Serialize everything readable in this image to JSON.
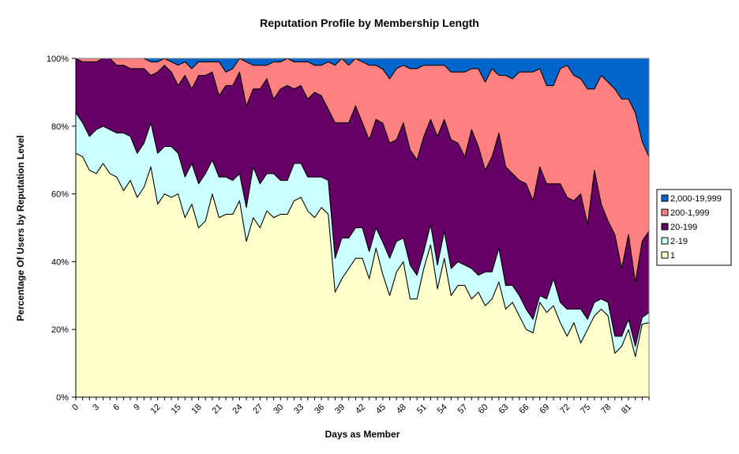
{
  "chart_data": {
    "type": "area",
    "stacked": "percent",
    "title": "Reputation Profile by Membership Length",
    "xlabel": "Days as Member",
    "ylabel": "Percentage Of Users by Reputation Level",
    "ylim": [
      0,
      100
    ],
    "y_ticks": [
      "0%",
      "20%",
      "40%",
      "60%",
      "80%",
      "100%"
    ],
    "x": [
      0,
      1,
      2,
      3,
      4,
      5,
      6,
      7,
      8,
      9,
      10,
      11,
      12,
      13,
      14,
      15,
      16,
      17,
      18,
      19,
      20,
      21,
      22,
      23,
      24,
      25,
      26,
      27,
      28,
      29,
      30,
      31,
      32,
      33,
      34,
      35,
      36,
      37,
      38,
      39,
      40,
      41,
      42,
      43,
      44,
      45,
      46,
      47,
      48,
      49,
      50,
      51,
      52,
      53,
      54,
      55,
      56,
      57,
      58,
      59,
      60,
      61,
      62,
      63,
      64,
      65,
      66,
      67,
      68,
      69,
      70,
      71,
      72,
      73,
      74,
      75,
      76,
      77,
      78,
      79,
      80,
      81,
      82,
      83,
      84
    ],
    "x_tick_labels": [
      "0",
      "3",
      "6",
      "9",
      "12",
      "15",
      "18",
      "21",
      "24",
      "27",
      "30",
      "33",
      "36",
      "39",
      "42",
      "45",
      "48",
      "51",
      "54",
      "57",
      "60",
      "63",
      "66",
      "69",
      "72",
      "75",
      "78",
      "81"
    ],
    "x_tick_step": 3,
    "grid": false,
    "legend_position": "right",
    "series": [
      {
        "name": "1",
        "color": "#ffffcc",
        "values": [
          72,
          71,
          67,
          66,
          69,
          66,
          65,
          61,
          64,
          59,
          62,
          68,
          57,
          60,
          59,
          60,
          53,
          57,
          50,
          52,
          60,
          53,
          54,
          54,
          58,
          46,
          53,
          50,
          55,
          53,
          54,
          54,
          58,
          59,
          55,
          53,
          56,
          54,
          31,
          35,
          38,
          41,
          41,
          35,
          44,
          34,
          30,
          37,
          40,
          29,
          29,
          38,
          45,
          32,
          41,
          30,
          33,
          33,
          29,
          31,
          27,
          29,
          34,
          26,
          28,
          24,
          20,
          19,
          28,
          25,
          27,
          22,
          18,
          22,
          16,
          20,
          24,
          26,
          24,
          13,
          15,
          20,
          12,
          22,
          22
        ]
      },
      {
        "name": "2-19",
        "color": "#ccffff",
        "values": [
          12,
          10,
          10,
          13,
          11,
          13,
          13,
          17,
          13,
          13,
          13,
          13,
          15,
          14,
          15,
          12,
          12,
          12,
          13,
          14,
          10,
          12,
          11,
          10,
          8,
          10,
          15,
          13,
          11,
          13,
          10,
          10,
          11,
          10,
          10,
          12,
          9,
          10,
          10,
          12,
          9,
          9,
          9,
          8,
          6,
          9,
          11,
          9,
          7,
          10,
          7,
          5,
          6,
          7,
          8,
          8,
          7,
          6,
          9,
          5,
          10,
          8,
          10,
          7,
          5,
          6,
          6,
          4,
          2,
          4,
          8,
          6,
          8,
          4,
          10,
          3,
          4,
          3,
          4,
          5,
          3,
          3,
          3,
          2,
          3
        ]
      },
      {
        "name": "20-199",
        "color": "#660066",
        "values": [
          16,
          18,
          22,
          20,
          20,
          21,
          20,
          20,
          20,
          25,
          22,
          14,
          24,
          24,
          22,
          20,
          30,
          22,
          32,
          29,
          26,
          24,
          27,
          28,
          30,
          30,
          23,
          28,
          28,
          22,
          27,
          28,
          22,
          23,
          23,
          25,
          24,
          21,
          40,
          34,
          34,
          36,
          31,
          33,
          32,
          33,
          34,
          30,
          34,
          34,
          34,
          34,
          31,
          38,
          33,
          38,
          35,
          32,
          41,
          38,
          30,
          34,
          34,
          35,
          33,
          34,
          37,
          35,
          38,
          34,
          28,
          35,
          33,
          32,
          34,
          28,
          39,
          28,
          24,
          30,
          20,
          25,
          19,
          23,
          24
        ]
      },
      {
        "name": "200-1,999",
        "color": "#ff8080",
        "values": [
          0,
          1,
          1,
          1,
          0,
          0,
          2,
          2,
          3,
          3,
          3,
          4,
          3,
          2,
          3,
          6,
          4,
          6,
          4,
          4,
          3,
          10,
          4,
          5,
          4,
          13,
          7,
          7,
          4,
          11,
          8,
          8,
          8,
          7,
          11,
          8,
          9,
          14,
          17,
          19,
          17,
          14,
          18,
          22,
          16,
          15,
          19,
          21,
          17,
          24,
          27,
          21,
          16,
          21,
          16,
          20,
          21,
          25,
          18,
          23,
          26,
          26,
          17,
          27,
          28,
          32,
          33,
          38,
          29,
          29,
          29,
          34,
          39,
          37,
          34,
          40,
          24,
          38,
          41,
          43,
          50,
          40,
          50,
          30,
          22
        ]
      },
      {
        "name": "2,000-19,999",
        "color": "#0066cc",
        "values": [
          0,
          0,
          0,
          0,
          0,
          0,
          0,
          0,
          0,
          0,
          0,
          1,
          1,
          0,
          1,
          2,
          1,
          3,
          1,
          1,
          1,
          1,
          4,
          3,
          0,
          1,
          2,
          2,
          2,
          1,
          1,
          0,
          1,
          1,
          1,
          2,
          2,
          1,
          2,
          0,
          2,
          0,
          1,
          2,
          2,
          3,
          6,
          3,
          2,
          3,
          3,
          2,
          2,
          2,
          2,
          4,
          4,
          4,
          3,
          3,
          7,
          3,
          5,
          5,
          6,
          4,
          4,
          4,
          3,
          8,
          8,
          3,
          2,
          5,
          6,
          9,
          9,
          5,
          7,
          9,
          12,
          12,
          16,
          25,
          29
        ]
      }
    ]
  }
}
